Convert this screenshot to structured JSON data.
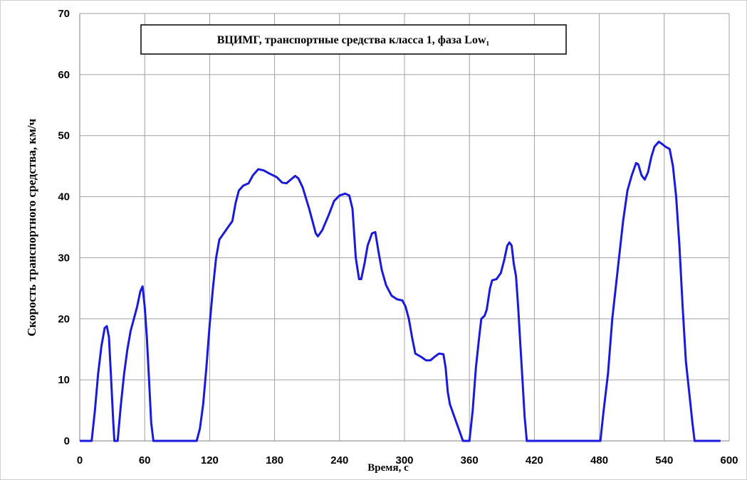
{
  "chart_data": {
    "type": "line",
    "title": "ВЦИМГ, транспортные средства класса 1, фаза Low₁",
    "x_label": "Время, с",
    "y_label": "Скорость транспортного средства, км/ч",
    "xlim": [
      0,
      600
    ],
    "xticks": [
      0,
      60,
      120,
      180,
      240,
      300,
      360,
      420,
      480,
      540,
      600
    ],
    "ylim": [
      0,
      70
    ],
    "yticks": [
      0,
      10,
      20,
      30,
      40,
      50,
      60,
      70
    ],
    "grid": true,
    "series": [
      {
        "color": "#1a1adc",
        "x": [
          0,
          11,
          14,
          17,
          20,
          23,
          25,
          27,
          29,
          31,
          32,
          35,
          38,
          41,
          44,
          47,
          50,
          53,
          56,
          58,
          60,
          62,
          64,
          66,
          68,
          108,
          111,
          114,
          117,
          120,
          123,
          126,
          129,
          133,
          137,
          141,
          144,
          147,
          151,
          156,
          160,
          165,
          170,
          175,
          182,
          187,
          191,
          195,
          199,
          202,
          206,
          212,
          218,
          220,
          224,
          230,
          235,
          240,
          245,
          249,
          252,
          255,
          258,
          260,
          263,
          266,
          270,
          273,
          276,
          279,
          283,
          288,
          293,
          298,
          301,
          304,
          307,
          310,
          315,
          320,
          324,
          328,
          332,
          336,
          338,
          340,
          342,
          346,
          350,
          354,
          360,
          363,
          366,
          369,
          371,
          374,
          376,
          379,
          381,
          385,
          389,
          392,
          395,
          397,
          399,
          401,
          403,
          405,
          407,
          409,
          411,
          413,
          481,
          484,
          488,
          492,
          497,
          502,
          506,
          510,
          514,
          516,
          519,
          522,
          525,
          528,
          531,
          535,
          539,
          541,
          545,
          548,
          551,
          554,
          557,
          560,
          563,
          566,
          568,
          592
        ],
        "values": [
          0,
          0,
          5,
          11,
          15.5,
          18.5,
          18.8,
          17,
          10,
          3,
          0,
          0,
          6,
          11,
          15,
          18,
          20,
          22,
          24.5,
          25.3,
          22,
          17,
          10,
          3,
          0,
          0,
          2,
          6,
          12,
          19,
          25,
          30,
          33,
          34,
          35,
          36,
          39,
          41,
          41.8,
          42.2,
          43.5,
          44.5,
          44.3,
          43.8,
          43.2,
          42.3,
          42.2,
          42.8,
          43.4,
          43,
          41.5,
          38,
          34,
          33.5,
          34.5,
          37,
          39.3,
          40.2,
          40.5,
          40.2,
          38,
          30,
          26.5,
          26.5,
          29,
          32,
          34,
          34.2,
          31,
          28,
          25.5,
          23.8,
          23.2,
          23,
          22,
          20,
          17,
          14.3,
          13.8,
          13.2,
          13.2,
          13.8,
          14.3,
          14.2,
          12,
          8,
          6,
          4,
          2,
          0,
          0,
          5,
          12,
          17,
          20,
          20.5,
          21.5,
          25,
          26.3,
          26.5,
          27.5,
          29.5,
          32,
          32.5,
          32,
          29,
          27,
          22,
          16,
          10,
          4,
          0,
          0,
          5,
          11,
          20,
          28,
          36,
          41,
          43.5,
          45.5,
          45.3,
          43.5,
          42.8,
          44,
          46.5,
          48.2,
          49,
          48.5,
          48.2,
          47.8,
          45,
          40,
          32,
          22,
          13,
          8,
          3,
          0,
          0
        ]
      }
    ]
  }
}
